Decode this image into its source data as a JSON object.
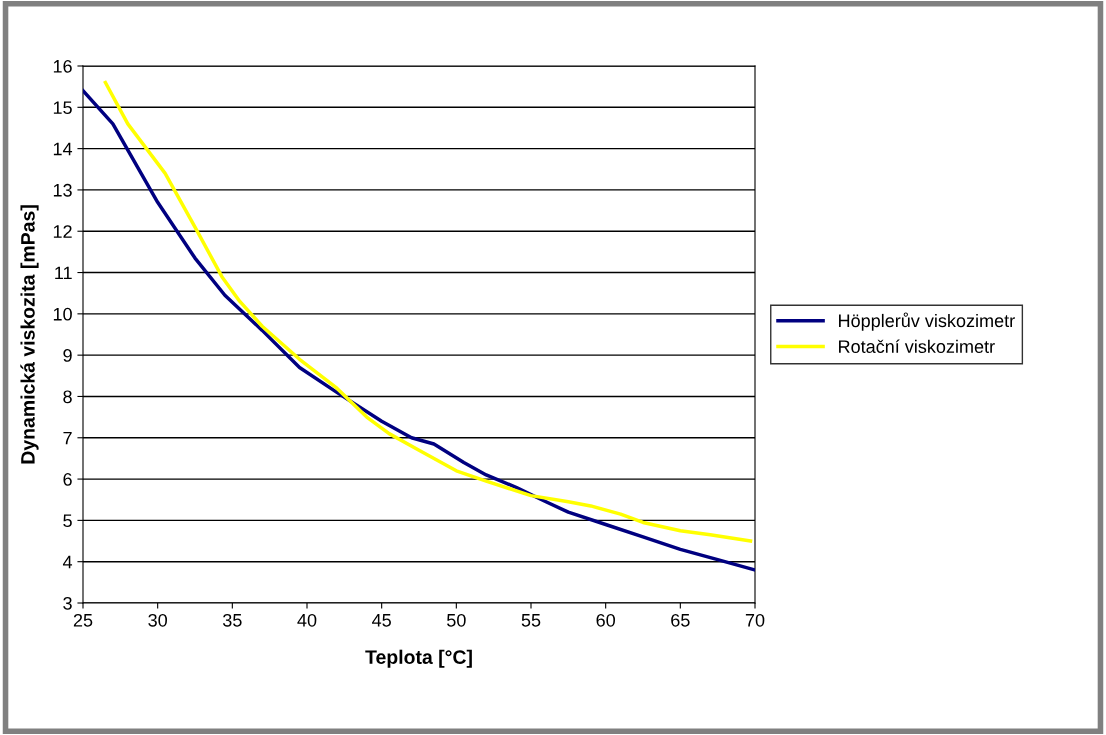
{
  "chart_data": {
    "type": "line",
    "xlabel": "Teplota [°C]",
    "ylabel": "Dynamická viskozita [mPas]",
    "xlim": [
      25,
      70
    ],
    "xticks": [
      25,
      30,
      35,
      40,
      45,
      50,
      55,
      60,
      65,
      70
    ],
    "ylim": [
      3,
      16
    ],
    "yticks": [
      3,
      4,
      5,
      6,
      7,
      8,
      9,
      10,
      11,
      12,
      13,
      14,
      15,
      16
    ],
    "grid": "y",
    "legend": "right",
    "marker": "none",
    "line_style": "solid",
    "series": [
      {
        "name": "Höpplerův viskozimetr",
        "color": "#000080",
        "x": [
          25,
          27,
          30,
          32.5,
          34.5,
          37,
          39.5,
          42,
          45,
          47,
          48.5,
          50.5,
          52,
          54,
          56,
          57.5,
          60,
          62.5,
          65,
          67.5,
          70
        ],
        "values": [
          15.4,
          14.6,
          12.7,
          11.35,
          10.45,
          9.6,
          8.7,
          8.1,
          7.4,
          7.0,
          6.85,
          6.4,
          6.1,
          5.8,
          5.45,
          5.2,
          4.9,
          4.6,
          4.3,
          4.05,
          3.8
        ]
      },
      {
        "name": "Rotační viskozimetr",
        "color": "#ffff00",
        "x": [
          26.5,
          28,
          30.5,
          32.5,
          34.3,
          35.5,
          37,
          39.5,
          42,
          44,
          45.5,
          47.5,
          50,
          52,
          55,
          57.5,
          59,
          61,
          62.5,
          65,
          67,
          69.7
        ],
        "values": [
          15.6,
          14.6,
          13.4,
          12.1,
          10.9,
          10.3,
          9.7,
          8.9,
          8.2,
          7.5,
          7.1,
          6.7,
          6.2,
          5.95,
          5.6,
          5.45,
          5.35,
          5.15,
          4.95,
          4.75,
          4.65,
          4.5
        ]
      }
    ]
  }
}
